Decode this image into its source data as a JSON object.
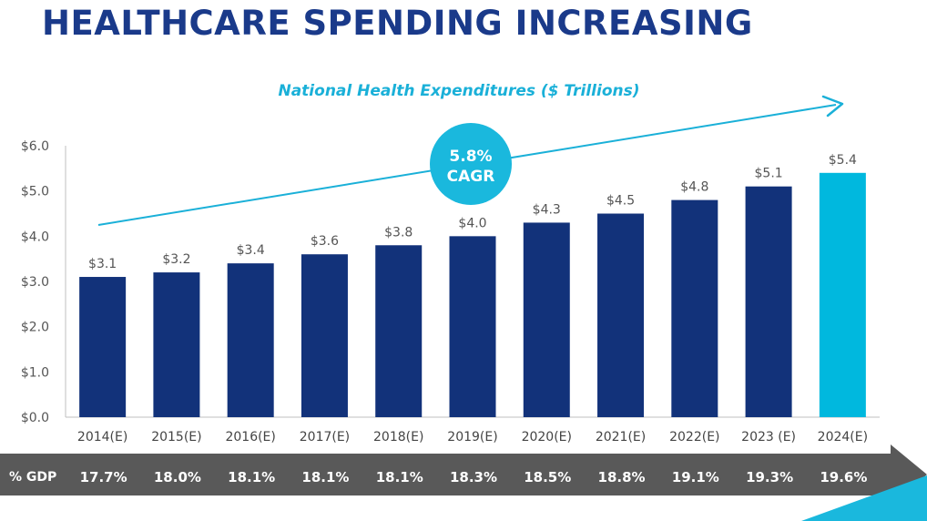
{
  "page": {
    "title": "HEALTHCARE SPENDING INCREASING"
  },
  "chart_data": {
    "type": "bar",
    "title": "National Health Expenditures ($ Trillions)",
    "categories": [
      "2014(E)",
      "2015(E)",
      "2016(E)",
      "2017(E)",
      "2018(E)",
      "2019(E)",
      "2020(E)",
      "2021(E)",
      "2022(E)",
      "2023 (E)",
      "2024(E)"
    ],
    "values": [
      3.1,
      3.2,
      3.4,
      3.6,
      3.8,
      4.0,
      4.3,
      4.5,
      4.8,
      5.1,
      5.4
    ],
    "data_labels": [
      "$3.1",
      "$3.2",
      "$3.4",
      "$3.6",
      "$3.8",
      "$4.0",
      "$4.3",
      "$4.5",
      "$4.8",
      "$5.1",
      "$5.4"
    ],
    "ylim": [
      0,
      6
    ],
    "yticks": [
      0,
      1,
      2,
      3,
      4,
      5,
      6
    ],
    "ytick_labels": [
      "$0.0",
      "$1.0",
      "$2.0",
      "$3.0",
      "$4.0",
      "$5.0",
      "$6.0"
    ],
    "grid": false,
    "colors": {
      "bar": "#12327a",
      "highlight_bar": "#00b8de",
      "title": "#1ab0d8",
      "trend": "#1ab0d8"
    },
    "annotation": {
      "line1": "5.8%",
      "line2": "CAGR"
    }
  },
  "gdp_row": {
    "label": "% GDP",
    "values": [
      "17.7%",
      "18.0%",
      "18.1%",
      "18.1%",
      "18.1%",
      "18.3%",
      "18.5%",
      "18.8%",
      "19.1%",
      "19.3%",
      "19.6%"
    ]
  }
}
